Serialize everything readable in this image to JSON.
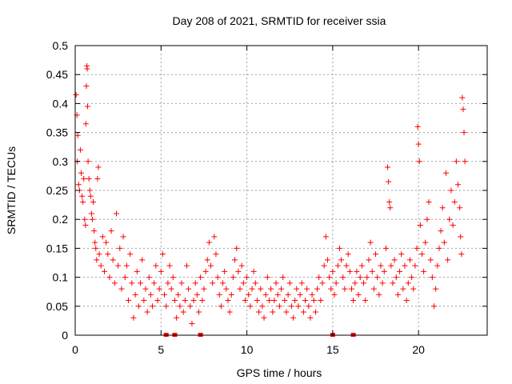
{
  "chart_data": {
    "type": "scatter",
    "title": "Day 208 of 2021, SRMTID for receiver ssia",
    "xlabel": "GPS time / hours",
    "ylabel": "SRMTID / TECUs",
    "xlim": [
      0,
      24
    ],
    "ylim": [
      0,
      0.5
    ],
    "x_ticks": [
      0,
      5,
      10,
      15,
      20
    ],
    "y_ticks": [
      0,
      0.05,
      0.1,
      0.15,
      0.2,
      0.25,
      0.3,
      0.35,
      0.4,
      0.45,
      0.5
    ],
    "x_tick_labels": [
      "0",
      "5",
      "10",
      "15",
      "20"
    ],
    "y_tick_labels": [
      "0",
      "0.05",
      "0.1",
      "0.15",
      "0.2",
      "0.25",
      "0.3",
      "0.35",
      "0.4",
      "0.45",
      "0.5"
    ],
    "grid": true,
    "marker": "+",
    "color": "#ff0000",
    "series": [
      {
        "name": "SRMTID",
        "points": [
          [
            0.05,
            0.415
          ],
          [
            0.1,
            0.38
          ],
          [
            0.15,
            0.345
          ],
          [
            0.12,
            0.3
          ],
          [
            0.2,
            0.26
          ],
          [
            0.25,
            0.25
          ],
          [
            0.3,
            0.32
          ],
          [
            0.35,
            0.28
          ],
          [
            0.4,
            0.24
          ],
          [
            0.45,
            0.23
          ],
          [
            0.5,
            0.27
          ],
          [
            0.55,
            0.2
          ],
          [
            0.6,
            0.19
          ],
          [
            0.62,
            0.365
          ],
          [
            0.65,
            0.43
          ],
          [
            0.68,
            0.465
          ],
          [
            0.7,
            0.46
          ],
          [
            0.72,
            0.395
          ],
          [
            0.75,
            0.3
          ],
          [
            0.8,
            0.27
          ],
          [
            0.85,
            0.25
          ],
          [
            0.9,
            0.24
          ],
          [
            0.95,
            0.21
          ],
          [
            1.0,
            0.2
          ],
          [
            1.05,
            0.23
          ],
          [
            1.1,
            0.18
          ],
          [
            1.15,
            0.16
          ],
          [
            1.2,
            0.15
          ],
          [
            1.25,
            0.13
          ],
          [
            1.3,
            0.27
          ],
          [
            1.35,
            0.29
          ],
          [
            1.4,
            0.14
          ],
          [
            1.5,
            0.12
          ],
          [
            1.6,
            0.17
          ],
          [
            1.7,
            0.11
          ],
          [
            1.8,
            0.16
          ],
          [
            1.9,
            0.14
          ],
          [
            2.0,
            0.1
          ],
          [
            2.1,
            0.18
          ],
          [
            2.2,
            0.13
          ],
          [
            2.3,
            0.09
          ],
          [
            2.4,
            0.21
          ],
          [
            2.5,
            0.12
          ],
          [
            2.6,
            0.15
          ],
          [
            2.7,
            0.08
          ],
          [
            2.8,
            0.17
          ],
          [
            2.9,
            0.1
          ],
          [
            3.0,
            0.12
          ],
          [
            3.1,
            0.06
          ],
          [
            3.2,
            0.14
          ],
          [
            3.3,
            0.09
          ],
          [
            3.4,
            0.03
          ],
          [
            3.5,
            0.07
          ],
          [
            3.6,
            0.11
          ],
          [
            3.7,
            0.05
          ],
          [
            3.8,
            0.09
          ],
          [
            3.9,
            0.13
          ],
          [
            4.0,
            0.06
          ],
          [
            4.1,
            0.08
          ],
          [
            4.2,
            0.04
          ],
          [
            4.3,
            0.1
          ],
          [
            4.4,
            0.07
          ],
          [
            4.5,
            0.05
          ],
          [
            4.6,
            0.09
          ],
          [
            4.7,
            0.12
          ],
          [
            4.8,
            0.06
          ],
          [
            4.9,
            0.08
          ],
          [
            5.0,
            0.11
          ],
          [
            5.1,
            0.14
          ],
          [
            5.2,
            0.07
          ],
          [
            5.3,
            0.05
          ],
          [
            5.4,
            0.09
          ],
          [
            5.5,
            0.12
          ],
          [
            5.6,
            0.08
          ],
          [
            5.7,
            0.1
          ],
          [
            5.8,
            0.06
          ],
          [
            5.9,
            0.03
          ],
          [
            6.0,
            0.07
          ],
          [
            6.1,
            0.05
          ],
          [
            6.2,
            0.09
          ],
          [
            6.3,
            0.04
          ],
          [
            6.4,
            0.06
          ],
          [
            6.5,
            0.12
          ],
          [
            6.6,
            0.08
          ],
          [
            6.7,
            0.05
          ],
          [
            6.8,
            0.02
          ],
          [
            6.9,
            0.06
          ],
          [
            7.0,
            0.09
          ],
          [
            7.1,
            0.07
          ],
          [
            7.2,
            0.04
          ],
          [
            7.3,
            0.1
          ],
          [
            7.4,
            0.06
          ],
          [
            7.5,
            0.08
          ],
          [
            7.6,
            0.11
          ],
          [
            7.7,
            0.13
          ],
          [
            7.8,
            0.16
          ],
          [
            7.9,
            0.12
          ],
          [
            8.0,
            0.09
          ],
          [
            8.1,
            0.17
          ],
          [
            8.2,
            0.14
          ],
          [
            8.3,
            0.1
          ],
          [
            8.4,
            0.07
          ],
          [
            8.5,
            0.05
          ],
          [
            8.6,
            0.09
          ],
          [
            8.7,
            0.11
          ],
          [
            8.8,
            0.08
          ],
          [
            8.9,
            0.06
          ],
          [
            9.0,
            0.04
          ],
          [
            9.1,
            0.07
          ],
          [
            9.2,
            0.1
          ],
          [
            9.3,
            0.13
          ],
          [
            9.4,
            0.15
          ],
          [
            9.5,
            0.11
          ],
          [
            9.6,
            0.08
          ],
          [
            9.7,
            0.12
          ],
          [
            9.8,
            0.09
          ],
          [
            9.9,
            0.06
          ],
          [
            10.0,
            0.1
          ],
          [
            10.1,
            0.07
          ],
          [
            10.2,
            0.05
          ],
          [
            10.3,
            0.08
          ],
          [
            10.4,
            0.11
          ],
          [
            10.5,
            0.09
          ],
          [
            10.6,
            0.06
          ],
          [
            10.7,
            0.04
          ],
          [
            10.8,
            0.08
          ],
          [
            10.9,
            0.05
          ],
          [
            11.0,
            0.03
          ],
          [
            11.1,
            0.07
          ],
          [
            11.2,
            0.1
          ],
          [
            11.3,
            0.06
          ],
          [
            11.4,
            0.08
          ],
          [
            11.5,
            0.04
          ],
          [
            11.6,
            0.06
          ],
          [
            11.7,
            0.09
          ],
          [
            11.8,
            0.07
          ],
          [
            11.9,
            0.05
          ],
          [
            12.0,
            0.08
          ],
          [
            12.1,
            0.1
          ],
          [
            12.2,
            0.06
          ],
          [
            12.3,
            0.04
          ],
          [
            12.4,
            0.07
          ],
          [
            12.5,
            0.09
          ],
          [
            12.6,
            0.05
          ],
          [
            12.7,
            0.03
          ],
          [
            12.8,
            0.06
          ],
          [
            12.9,
            0.08
          ],
          [
            13.0,
            0.05
          ],
          [
            13.1,
            0.07
          ],
          [
            13.2,
            0.09
          ],
          [
            13.3,
            0.04
          ],
          [
            13.4,
            0.06
          ],
          [
            13.5,
            0.08
          ],
          [
            13.6,
            0.05
          ],
          [
            13.7,
            0.03
          ],
          [
            13.8,
            0.07
          ],
          [
            13.9,
            0.06
          ],
          [
            14.0,
            0.04
          ],
          [
            14.1,
            0.08
          ],
          [
            14.2,
            0.1
          ],
          [
            14.3,
            0.06
          ],
          [
            14.4,
            0.09
          ],
          [
            14.5,
            0.12
          ],
          [
            14.6,
            0.17
          ],
          [
            14.7,
            0.13
          ],
          [
            14.8,
            0.1
          ],
          [
            14.9,
            0.08
          ],
          [
            15.0,
            0.11
          ],
          [
            15.1,
            0.07
          ],
          [
            15.2,
            0.09
          ],
          [
            15.3,
            0.12
          ],
          [
            15.4,
            0.15
          ],
          [
            15.5,
            0.13
          ],
          [
            15.6,
            0.1
          ],
          [
            15.7,
            0.08
          ],
          [
            15.8,
            0.12
          ],
          [
            15.9,
            0.14
          ],
          [
            16.0,
            0.11
          ],
          [
            16.1,
            0.08
          ],
          [
            16.2,
            0.06
          ],
          [
            16.3,
            0.09
          ],
          [
            16.4,
            0.11
          ],
          [
            16.5,
            0.07
          ],
          [
            16.6,
            0.1
          ],
          [
            16.7,
            0.12
          ],
          [
            16.8,
            0.09
          ],
          [
            16.9,
            0.06
          ],
          [
            17.0,
            0.1
          ],
          [
            17.1,
            0.13
          ],
          [
            17.2,
            0.16
          ],
          [
            17.3,
            0.11
          ],
          [
            17.4,
            0.08
          ],
          [
            17.5,
            0.14
          ],
          [
            17.6,
            0.1
          ],
          [
            17.7,
            0.07
          ],
          [
            17.8,
            0.12
          ],
          [
            17.9,
            0.09
          ],
          [
            18.0,
            0.11
          ],
          [
            18.1,
            0.15
          ],
          [
            18.2,
            0.29
          ],
          [
            18.25,
            0.265
          ],
          [
            18.3,
            0.23
          ],
          [
            18.35,
            0.22
          ],
          [
            18.4,
            0.12
          ],
          [
            18.5,
            0.09
          ],
          [
            18.6,
            0.13
          ],
          [
            18.7,
            0.1
          ],
          [
            18.8,
            0.07
          ],
          [
            18.9,
            0.11
          ],
          [
            19.0,
            0.14
          ],
          [
            19.1,
            0.08
          ],
          [
            19.2,
            0.12
          ],
          [
            19.3,
            0.06
          ],
          [
            19.4,
            0.09
          ],
          [
            19.5,
            0.13
          ],
          [
            19.6,
            0.1
          ],
          [
            19.7,
            0.08
          ],
          [
            19.8,
            0.12
          ],
          [
            19.9,
            0.15
          ],
          [
            19.95,
            0.36
          ],
          [
            20.0,
            0.33
          ],
          [
            20.05,
            0.3
          ],
          [
            20.1,
            0.19
          ],
          [
            20.2,
            0.14
          ],
          [
            20.3,
            0.11
          ],
          [
            20.4,
            0.16
          ],
          [
            20.5,
            0.2
          ],
          [
            20.6,
            0.23
          ],
          [
            20.7,
            0.13
          ],
          [
            20.8,
            0.1
          ],
          [
            20.9,
            0.05
          ],
          [
            21.0,
            0.08
          ],
          [
            21.1,
            0.12
          ],
          [
            21.2,
            0.15
          ],
          [
            21.3,
            0.18
          ],
          [
            21.4,
            0.22
          ],
          [
            21.5,
            0.16
          ],
          [
            21.6,
            0.28
          ],
          [
            21.7,
            0.13
          ],
          [
            21.8,
            0.2
          ],
          [
            21.9,
            0.25
          ],
          [
            22.0,
            0.19
          ],
          [
            22.1,
            0.23
          ],
          [
            22.2,
            0.3
          ],
          [
            22.3,
            0.26
          ],
          [
            22.4,
            0.22
          ],
          [
            22.45,
            0.17
          ],
          [
            22.5,
            0.14
          ],
          [
            22.55,
            0.41
          ],
          [
            22.6,
            0.39
          ],
          [
            22.65,
            0.35
          ],
          [
            22.7,
            0.3
          ]
        ]
      }
    ],
    "x_data_gaps": [
      5.3,
      5.8,
      7.3,
      15.0,
      16.2
    ]
  }
}
